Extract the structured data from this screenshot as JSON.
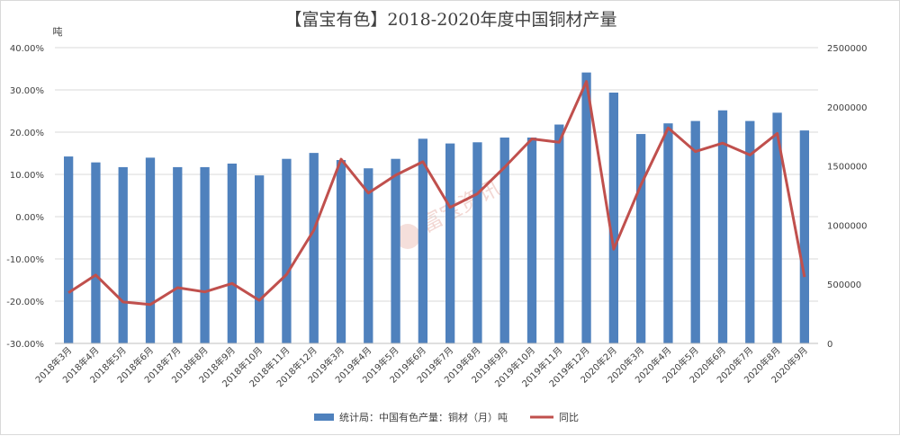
{
  "chart_data": {
    "type": "bar",
    "title": "【富宝有色】2018-2020年度中国铜材产量",
    "unit_left": "吨",
    "watermark": "富宝资讯",
    "categories": [
      "2018年3月",
      "2018年4月",
      "2018年5月",
      "2018年6月",
      "2018年7月",
      "2018年8月",
      "2018年9月",
      "2018年10月",
      "2018年11月",
      "2018年12月",
      "2019年3月",
      "2019年4月",
      "2019年5月",
      "2019年6月",
      "2019年7月",
      "2019年8月",
      "2019年9月",
      "2019年10月",
      "2019年11月",
      "2019年12月",
      "2020年2月",
      "2020年3月",
      "2020年4月",
      "2020年5月",
      "2020年6月",
      "2020年7月",
      "2020年8月",
      "2020年9月"
    ],
    "series": [
      {
        "name": "统计局：中国有色产量：铜材（月）吨",
        "type": "bar",
        "axis": "right",
        "color": "#4f81bd",
        "values": [
          1580000,
          1530000,
          1490000,
          1570000,
          1490000,
          1490000,
          1520000,
          1420000,
          1560000,
          1610000,
          1550000,
          1480000,
          1560000,
          1730000,
          1690000,
          1700000,
          1740000,
          1740000,
          1850000,
          2290000,
          2120000,
          1770000,
          1860000,
          1880000,
          1970000,
          1880000,
          1950000,
          1800000
        ]
      },
      {
        "name": "同比",
        "type": "line",
        "axis": "left",
        "color": "#c0504d",
        "values": [
          -18.0,
          -13.8,
          -20.2,
          -20.8,
          -16.8,
          -17.8,
          -15.8,
          -19.8,
          -13.7,
          -3.2,
          13.6,
          5.6,
          9.8,
          13.0,
          2.2,
          5.4,
          11.7,
          18.4,
          17.6,
          32.0,
          -7.7,
          7.5,
          21.0,
          15.4,
          17.4,
          14.6,
          19.7,
          -14.3
        ]
      }
    ],
    "y_left": {
      "ylim": [
        -30,
        40
      ],
      "ticks": [
        "-30.00%",
        "-20.00%",
        "-10.00%",
        "0.00%",
        "10.00%",
        "20.00%",
        "30.00%",
        "40.00%"
      ]
    },
    "y_right": {
      "ylim": [
        0,
        2500000
      ],
      "ticks": [
        "0",
        "500000",
        "1000000",
        "1500000",
        "2000000",
        "2500000"
      ]
    },
    "grid": true,
    "legend_position": "bottom"
  }
}
